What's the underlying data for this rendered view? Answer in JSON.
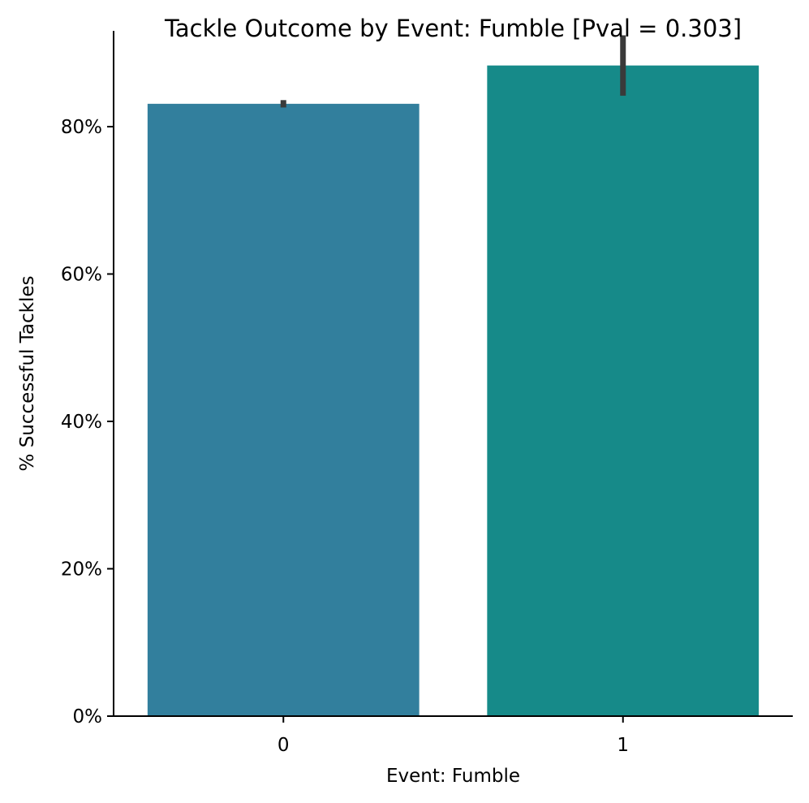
{
  "chart_data": {
    "type": "bar",
    "title": "Tackle Outcome by Event: Fumble [Pval = 0.303]",
    "xlabel": "Event: Fumble",
    "ylabel": "% Successful Tackles",
    "categories": [
      "0",
      "1"
    ],
    "values": [
      0.831,
      0.883
    ],
    "error_bars": [
      {
        "low": 0.826,
        "high": 0.836
      },
      {
        "low": 0.842,
        "high": 0.924
      }
    ],
    "bar_colors": [
      "#327f9d",
      "#168a89"
    ],
    "errorbar_color": "#3a3a3a",
    "ylim": [
      0,
      0.93
    ],
    "y_ticks": [
      0,
      0.2,
      0.4,
      0.6,
      0.8
    ],
    "y_tick_labels": [
      "0%",
      "20%",
      "40%",
      "60%",
      "80%"
    ],
    "grid": false,
    "legend": "none"
  }
}
